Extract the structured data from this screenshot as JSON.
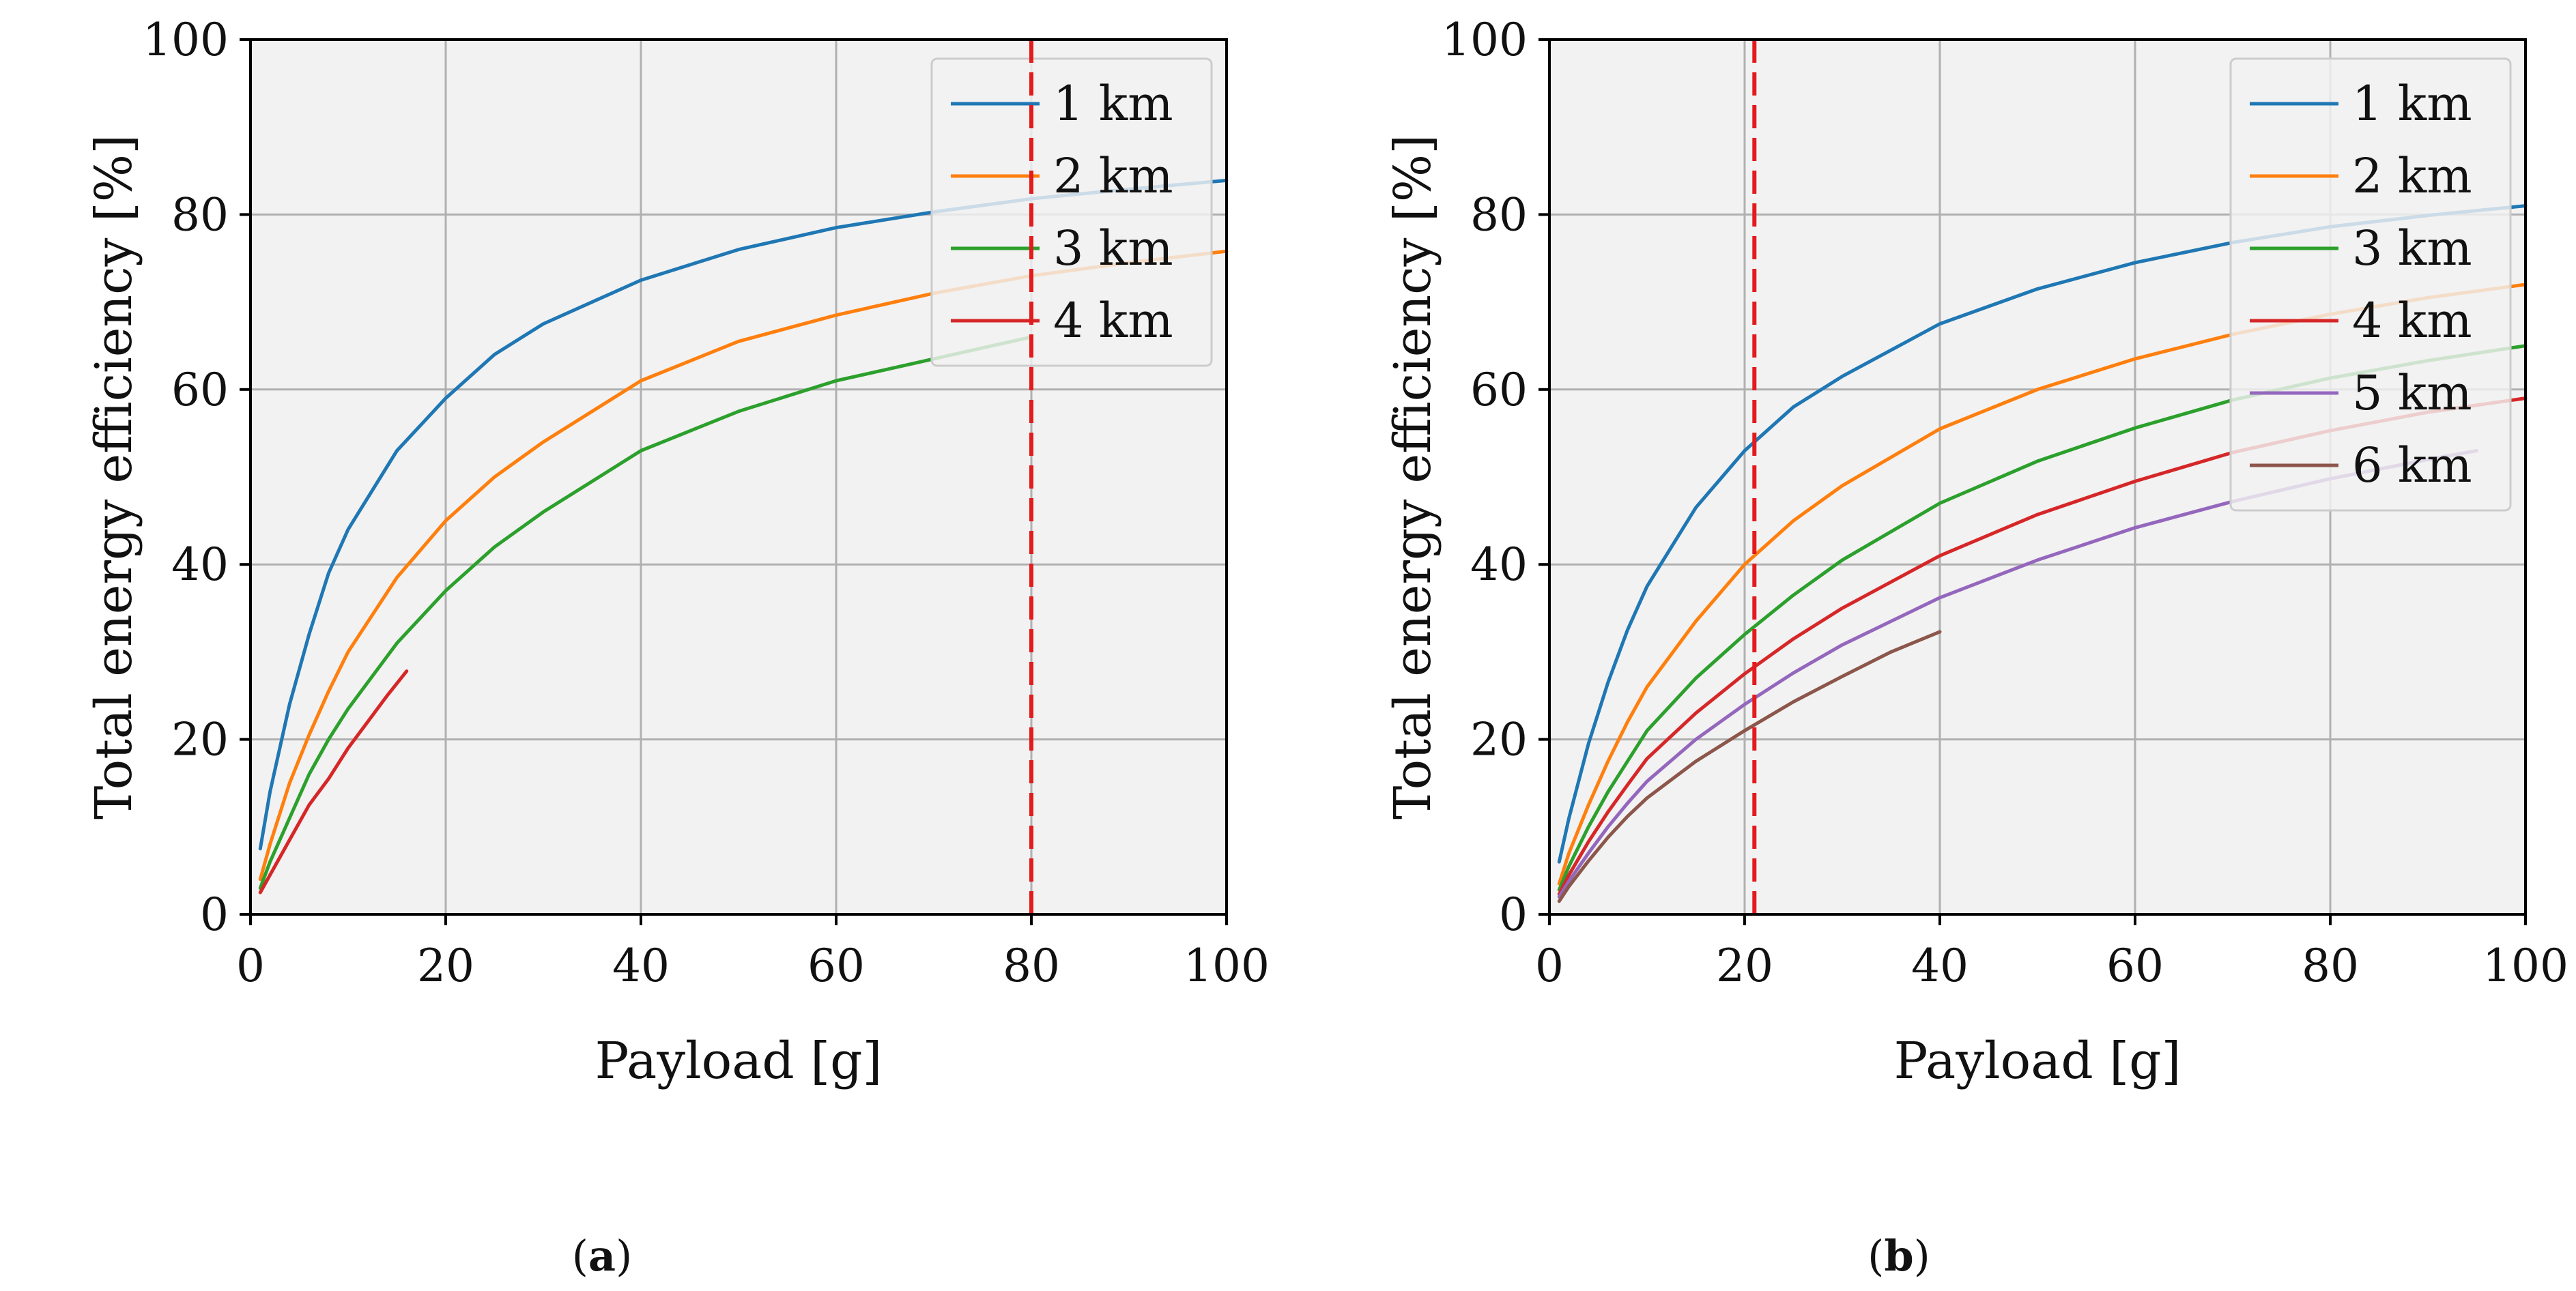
{
  "figure": {
    "background": "#ffffff",
    "plot_background": "#f2f2f2",
    "grid_color": "#b0b0b0",
    "vline_color": "#e41a1c",
    "caption_open": "(",
    "caption_close": ")"
  },
  "chart_data": [
    {
      "id": "a",
      "type": "line",
      "caption": "a",
      "xlabel": "Payload [g]",
      "ylabel": "Total energy efficiency [%]",
      "xlim": [
        0,
        100
      ],
      "ylim": [
        0,
        100
      ],
      "xticks": [
        "0",
        "20",
        "40",
        "60",
        "80",
        "100"
      ],
      "yticks": [
        "0",
        "20",
        "40",
        "60",
        "80",
        "100"
      ],
      "grid": true,
      "legend_position": "top-right",
      "vertical_line": {
        "x": 80,
        "style": "dashed"
      },
      "series": [
        {
          "name": "1 km",
          "color": "#1f77b4",
          "x": [
            1,
            2,
            4,
            6,
            8,
            10,
            15,
            20,
            25,
            30,
            40,
            50,
            60,
            70,
            80,
            90,
            100
          ],
          "y": [
            7.5,
            14,
            24,
            32,
            39,
            44,
            53,
            59,
            64,
            67.5,
            72.5,
            76,
            78.5,
            80.3,
            81.8,
            82.9,
            83.9
          ]
        },
        {
          "name": "2 km",
          "color": "#ff7f0e",
          "x": [
            1,
            2,
            4,
            6,
            8,
            10,
            15,
            20,
            25,
            30,
            40,
            50,
            60,
            70,
            80,
            90,
            100
          ],
          "y": [
            4,
            8,
            15,
            20.5,
            25.5,
            30,
            38.5,
            45,
            50,
            54,
            61,
            65.5,
            68.5,
            71,
            73,
            74.5,
            75.8
          ]
        },
        {
          "name": "3 km",
          "color": "#2ca02c",
          "x": [
            1,
            2,
            4,
            6,
            8,
            10,
            15,
            20,
            25,
            30,
            40,
            50,
            60,
            70,
            80
          ],
          "y": [
            3,
            6,
            11,
            16,
            20,
            23.5,
            31,
            37,
            42,
            46,
            53,
            57.5,
            61,
            63.5,
            66
          ]
        },
        {
          "name": "4 km",
          "color": "#d62728",
          "x": [
            1,
            2,
            4,
            6,
            8,
            10,
            12,
            14,
            16
          ],
          "y": [
            2.5,
            4.5,
            8.5,
            12.5,
            15.5,
            19,
            22,
            25,
            27.8
          ]
        }
      ]
    },
    {
      "id": "b",
      "type": "line",
      "caption": "b",
      "xlabel": "Payload [g]",
      "ylabel": "Total energy efficiency [%]",
      "xlim": [
        0,
        100
      ],
      "ylim": [
        0,
        100
      ],
      "xticks": [
        "0",
        "20",
        "40",
        "60",
        "80",
        "100"
      ],
      "yticks": [
        "0",
        "20",
        "40",
        "60",
        "80",
        "100"
      ],
      "grid": true,
      "legend_position": "top-right",
      "vertical_line": {
        "x": 21,
        "style": "dashed"
      },
      "series": [
        {
          "name": "1 km",
          "color": "#1f77b4",
          "x": [
            1,
            2,
            4,
            6,
            8,
            10,
            15,
            20,
            25,
            30,
            40,
            50,
            60,
            70,
            80,
            90,
            100
          ],
          "y": [
            6,
            11,
            19.5,
            26.5,
            32.5,
            37.5,
            46.5,
            53,
            58,
            61.5,
            67.5,
            71.5,
            74.5,
            76.8,
            78.6,
            79.9,
            81
          ]
        },
        {
          "name": "2 km",
          "color": "#ff7f0e",
          "x": [
            1,
            2,
            4,
            6,
            8,
            10,
            15,
            20,
            25,
            30,
            40,
            50,
            60,
            70,
            80,
            90,
            100
          ],
          "y": [
            3.5,
            7,
            12.5,
            17.5,
            22,
            26,
            33.5,
            40,
            45,
            49,
            55.5,
            60,
            63.5,
            66.3,
            68.6,
            70.5,
            72
          ]
        },
        {
          "name": "3 km",
          "color": "#2ca02c",
          "x": [
            1,
            2,
            4,
            6,
            8,
            10,
            15,
            20,
            25,
            30,
            40,
            50,
            60,
            70,
            80,
            90,
            100
          ],
          "y": [
            2.8,
            5.5,
            10,
            14,
            17.5,
            21,
            27,
            32,
            36.5,
            40.5,
            47,
            51.8,
            55.6,
            58.8,
            61.3,
            63.3,
            65
          ]
        },
        {
          "name": "4 km",
          "color": "#d62728",
          "x": [
            1,
            2,
            4,
            6,
            8,
            10,
            15,
            20,
            25,
            30,
            40,
            50,
            60,
            70,
            80,
            90,
            100
          ],
          "y": [
            2.3,
            4.5,
            8.3,
            11.7,
            14.8,
            17.8,
            23,
            27.5,
            31.5,
            35,
            41,
            45.7,
            49.5,
            52.8,
            55.3,
            57.4,
            59
          ]
        },
        {
          "name": "5 km",
          "color": "#9467bd",
          "x": [
            1,
            2,
            4,
            6,
            8,
            10,
            15,
            20,
            25,
            30,
            40,
            50,
            60,
            70,
            80,
            90,
            95
          ],
          "y": [
            2,
            3.8,
            7,
            10,
            12.7,
            15.2,
            20,
            24,
            27.6,
            30.8,
            36.2,
            40.5,
            44.2,
            47.2,
            49.8,
            52,
            53
          ]
        },
        {
          "name": "6 km",
          "color": "#8c564b",
          "x": [
            1,
            2,
            4,
            6,
            8,
            10,
            15,
            20,
            25,
            30,
            35,
            40
          ],
          "y": [
            1.5,
            3.2,
            6.1,
            8.8,
            11.2,
            13.3,
            17.5,
            21,
            24.3,
            27.2,
            30,
            32.3
          ]
        }
      ]
    }
  ]
}
